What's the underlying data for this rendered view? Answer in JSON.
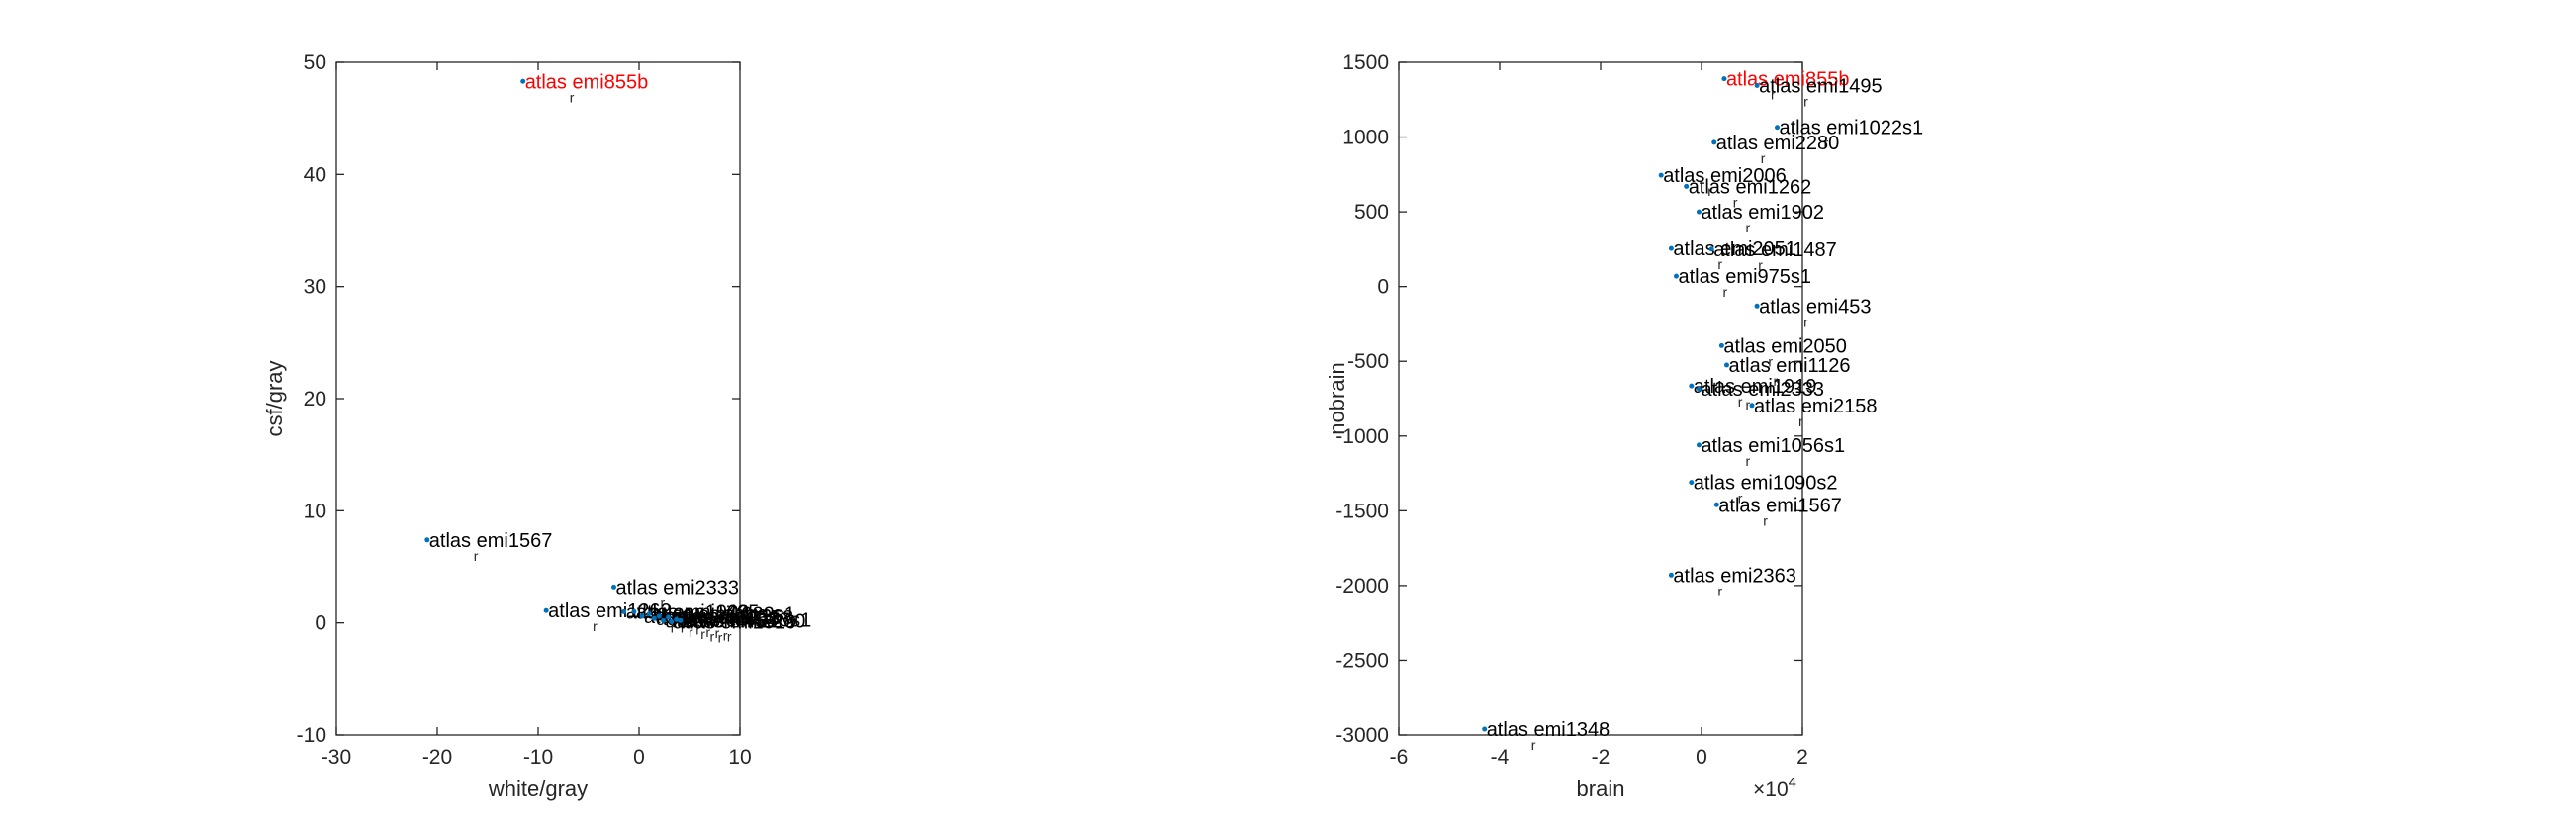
{
  "colors": {
    "axis": "#262626",
    "point": "#0072BD",
    "label": "#000000",
    "highlight": "#ff0000"
  },
  "chart_data": [
    {
      "type": "scatter",
      "xlabel": "white/gray",
      "ylabel": "csf/gray",
      "xlim": [
        -30,
        10
      ],
      "ylim": [
        -10,
        50
      ],
      "xticks": [
        -30,
        -20,
        -10,
        0,
        10
      ],
      "yticks": [
        -10,
        0,
        10,
        20,
        30,
        40,
        50
      ],
      "exponent_label": "",
      "grid": false,
      "points": [
        {
          "x": -11.5,
          "y": 48.3,
          "label": "atlas emi855b",
          "highlight": true
        },
        {
          "x": -21,
          "y": 7.4,
          "label": "atlas emi1567"
        },
        {
          "x": -2.5,
          "y": 3.2,
          "label": "atlas emi2333"
        },
        {
          "x": -9.2,
          "y": 1.1,
          "label": "atlas emi1262"
        },
        {
          "x": -1.5,
          "y": 1.0,
          "label": "atlas emi1902"
        },
        {
          "x": -0.5,
          "y": 1.0,
          "label": "atlas emi1495"
        },
        {
          "x": 0.3,
          "y": 0.6,
          "label": "atlas emi2006"
        },
        {
          "x": 1.0,
          "y": 0.8,
          "label": "atlas emi1022s1"
        },
        {
          "x": 1.5,
          "y": 0.4,
          "label": "atlas emi2050"
        },
        {
          "x": 2.0,
          "y": 0.6,
          "label": "atlas emi1126"
        },
        {
          "x": 2.4,
          "y": 0.2,
          "label": "atlas emi453"
        },
        {
          "x": 2.9,
          "y": 0.5,
          "label": "atlas emi2158"
        },
        {
          "x": 3.2,
          "y": 0.1,
          "label": "atlas emi1919"
        },
        {
          "x": 3.7,
          "y": 0.3,
          "label": "atlas emi975s1"
        },
        {
          "x": 4.1,
          "y": 0.2,
          "label": "atlas emi2280"
        }
      ]
    },
    {
      "type": "scatter",
      "xlabel": "brain",
      "ylabel": "nobrain",
      "xlim": [
        -6,
        2
      ],
      "ylim": [
        -3000,
        1500
      ],
      "xticks": [
        -6,
        -4,
        -2,
        0,
        2
      ],
      "yticks": [
        -3000,
        -2500,
        -2000,
        -1500,
        -1000,
        -500,
        0,
        500,
        1000,
        1500
      ],
      "exponent_label": "×10",
      "exponent_power": "4",
      "grid": false,
      "points": [
        {
          "x": 0.45,
          "y": 1390,
          "label": "atlas emi855b",
          "highlight": true
        },
        {
          "x": 1.1,
          "y": 1345,
          "label": "atlas emi1495"
        },
        {
          "x": 1.5,
          "y": 1065,
          "label": "atlas emi1022s1"
        },
        {
          "x": 0.25,
          "y": 965,
          "label": "atlas emi2280"
        },
        {
          "x": -0.8,
          "y": 745,
          "label": "atlas emi2006"
        },
        {
          "x": -0.3,
          "y": 670,
          "label": "atlas emi1262"
        },
        {
          "x": -0.05,
          "y": 500,
          "label": "atlas emi1902"
        },
        {
          "x": -0.6,
          "y": 255,
          "label": "atlas emi2051"
        },
        {
          "x": 0.2,
          "y": 250,
          "label": "atlas emi1487"
        },
        {
          "x": -0.5,
          "y": 70,
          "label": "atlas emi975s1"
        },
        {
          "x": 1.1,
          "y": -130,
          "label": "atlas emi453"
        },
        {
          "x": 0.4,
          "y": -395,
          "label": "atlas emi2050"
        },
        {
          "x": 0.5,
          "y": -525,
          "label": "atlas emi1126"
        },
        {
          "x": -0.2,
          "y": -665,
          "label": "atlas emi1919"
        },
        {
          "x": -0.05,
          "y": -685,
          "label": "atlas emi2333"
        },
        {
          "x": 1.0,
          "y": -795,
          "label": "atlas emi2158"
        },
        {
          "x": -0.05,
          "y": -1060,
          "label": "atlas emi1056s1"
        },
        {
          "x": -0.2,
          "y": -1310,
          "label": "atlas emi1090s2"
        },
        {
          "x": 0.3,
          "y": -1460,
          "label": "atlas emi1567"
        },
        {
          "x": -0.6,
          "y": -1930,
          "label": "atlas emi2363"
        },
        {
          "x": -4.3,
          "y": -2960,
          "label": "atlas emi1348"
        }
      ]
    }
  ]
}
